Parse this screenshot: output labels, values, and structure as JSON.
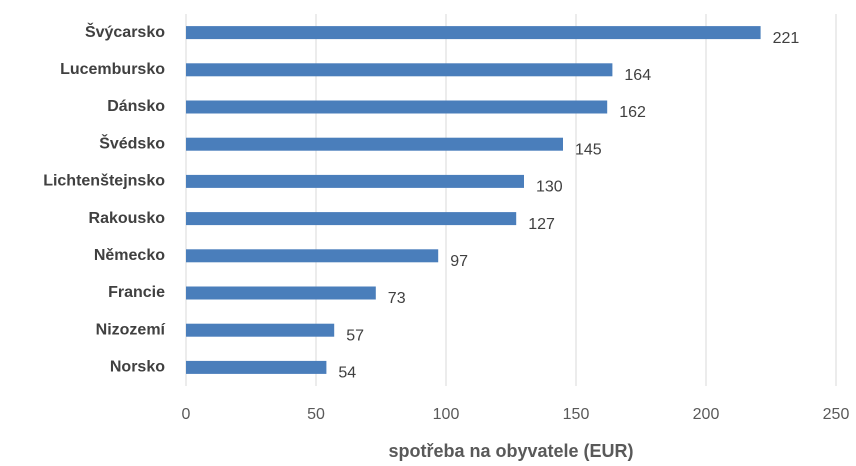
{
  "chart_data": {
    "type": "barh",
    "xlabel": "spotřeba na obyvatele (EUR)",
    "categories": [
      "Švýcarsko",
      "Lucembursko",
      "Dánsko",
      "Švédsko",
      "Lichtenštejnsko",
      "Rakousko",
      "Německo",
      "Francie",
      "Nizozemí",
      "Norsko"
    ],
    "values": [
      221,
      164,
      162,
      145,
      130,
      127,
      97,
      73,
      57,
      54
    ],
    "color": "#4a7ebb",
    "xlim": [
      0,
      250
    ],
    "xticks": [
      0,
      50,
      100,
      150,
      200,
      250
    ],
    "grid": true
  }
}
